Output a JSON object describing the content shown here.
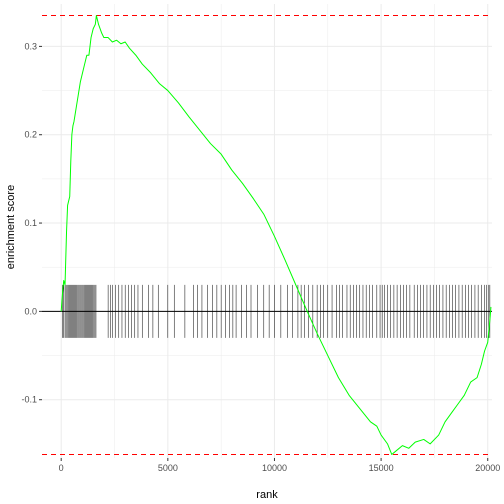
{
  "chart_data": {
    "type": "line",
    "title": "",
    "xlabel": "rank",
    "ylabel": "enrichment score",
    "xlim": [
      -900,
      20200
    ],
    "ylim": [
      -0.166,
      0.348
    ],
    "x_ticks": [
      0,
      5000,
      10000,
      15000,
      20000
    ],
    "x_tick_labels": [
      "0",
      "5000",
      "10000",
      "15000",
      "20000"
    ],
    "y_ticks": [
      -0.1,
      0.0,
      0.1,
      0.2,
      0.3
    ],
    "y_tick_labels": [
      "-0.1",
      "0.0",
      "0.1",
      "0.2",
      "0.3"
    ],
    "grid": true,
    "legend": "none",
    "colors": {
      "running_score": "#00ff00",
      "threshold_lines": "#ff0000",
      "zero_line": "#000000",
      "hit_ticks": "#000000",
      "grid": "#ebebeb"
    },
    "max_es": 0.335,
    "min_es": -0.162,
    "zero_line_y": 0.0,
    "hit_tick_range": [
      -0.03,
      0.03
    ],
    "running_score": [
      [
        0,
        0.0
      ],
      [
        60,
        0.02
      ],
      [
        120,
        0.035
      ],
      [
        180,
        0.03
      ],
      [
        250,
        0.09
      ],
      [
        300,
        0.12
      ],
      [
        400,
        0.13
      ],
      [
        450,
        0.17
      ],
      [
        500,
        0.2
      ],
      [
        550,
        0.21
      ],
      [
        600,
        0.215
      ],
      [
        700,
        0.23
      ],
      [
        800,
        0.245
      ],
      [
        900,
        0.26
      ],
      [
        1000,
        0.27
      ],
      [
        1100,
        0.28
      ],
      [
        1200,
        0.29
      ],
      [
        1300,
        0.29
      ],
      [
        1400,
        0.31
      ],
      [
        1500,
        0.32
      ],
      [
        1600,
        0.325
      ],
      [
        1650,
        0.335
      ],
      [
        1750,
        0.325
      ],
      [
        1900,
        0.315
      ],
      [
        2000,
        0.31
      ],
      [
        2200,
        0.31
      ],
      [
        2400,
        0.305
      ],
      [
        2600,
        0.307
      ],
      [
        2800,
        0.303
      ],
      [
        3000,
        0.305
      ],
      [
        3200,
        0.298
      ],
      [
        3500,
        0.29
      ],
      [
        3800,
        0.28
      ],
      [
        4200,
        0.27
      ],
      [
        4600,
        0.258
      ],
      [
        5000,
        0.25
      ],
      [
        5500,
        0.236
      ],
      [
        6000,
        0.22
      ],
      [
        6500,
        0.205
      ],
      [
        7000,
        0.19
      ],
      [
        7500,
        0.178
      ],
      [
        8000,
        0.16
      ],
      [
        8500,
        0.145
      ],
      [
        9000,
        0.128
      ],
      [
        9500,
        0.11
      ],
      [
        10000,
        0.085
      ],
      [
        10500,
        0.058
      ],
      [
        11000,
        0.03
      ],
      [
        11500,
        0.002
      ],
      [
        12000,
        -0.025
      ],
      [
        12500,
        -0.05
      ],
      [
        13000,
        -0.075
      ],
      [
        13500,
        -0.095
      ],
      [
        14000,
        -0.11
      ],
      [
        14500,
        -0.125
      ],
      [
        14800,
        -0.13
      ],
      [
        15000,
        -0.14
      ],
      [
        15300,
        -0.15
      ],
      [
        15500,
        -0.162
      ],
      [
        15700,
        -0.158
      ],
      [
        16000,
        -0.152
      ],
      [
        16300,
        -0.155
      ],
      [
        16600,
        -0.148
      ],
      [
        17000,
        -0.145
      ],
      [
        17300,
        -0.15
      ],
      [
        17700,
        -0.14
      ],
      [
        18000,
        -0.125
      ],
      [
        18300,
        -0.115
      ],
      [
        18600,
        -0.105
      ],
      [
        18900,
        -0.095
      ],
      [
        19200,
        -0.08
      ],
      [
        19500,
        -0.075
      ],
      [
        19700,
        -0.06
      ],
      [
        19850,
        -0.045
      ],
      [
        20000,
        -0.035
      ],
      [
        20100,
        -0.01
      ],
      [
        20150,
        0.005
      ]
    ],
    "hit_positions": [
      60,
      120,
      180,
      230,
      280,
      330,
      380,
      430,
      480,
      530,
      580,
      630,
      680,
      730,
      780,
      830,
      880,
      930,
      980,
      1030,
      1080,
      1130,
      1180,
      1230,
      1280,
      1330,
      1380,
      1430,
      1480,
      1530,
      1580,
      1630,
      2200,
      2300,
      2400,
      2550,
      2700,
      2850,
      3000,
      3150,
      3300,
      3450,
      3600,
      3800,
      4100,
      4300,
      4550,
      5000,
      5300,
      5800,
      6200,
      6400,
      6600,
      6850,
      7100,
      7300,
      7500,
      7700,
      7900,
      8050,
      8200,
      8450,
      8700,
      8900,
      9200,
      9500,
      9750,
      10000,
      10300,
      10600,
      10850,
      11100,
      11250,
      11400,
      11600,
      11800,
      12000,
      12150,
      12300,
      12500,
      12700,
      12900,
      13050,
      13200,
      13400,
      13550,
      13700,
      13850,
      14000,
      14150,
      14300,
      14450,
      14600,
      14800,
      14950,
      15050,
      15150,
      15300,
      15450,
      15600,
      15750,
      15900,
      16050,
      16200,
      16350,
      16550,
      16700,
      16850,
      17000,
      17150,
      17300,
      17450,
      17600,
      17750,
      17900,
      18050,
      18200,
      18350,
      18500,
      18650,
      18800,
      18950,
      19100,
      19250,
      19400,
      19550,
      19700,
      19850,
      19950,
      20050,
      20100
    ]
  }
}
